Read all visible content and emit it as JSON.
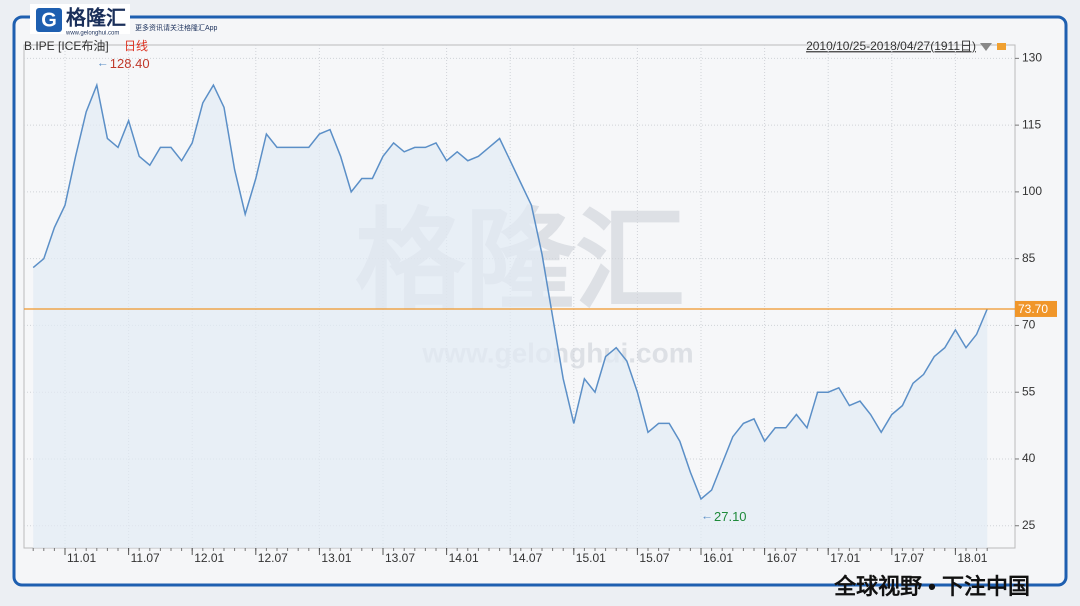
{
  "header": {
    "brand": "格隆汇",
    "brand_url": "www.gelonghui.com",
    "tagline": "更多资讯请关注格隆汇App"
  },
  "footer": "全球视野 • 下注中国",
  "watermark": {
    "name": "格隆汇",
    "url": "www.gelonghui.com"
  },
  "chart_data": {
    "type": "line",
    "title": "B.IPE [ICE布油]",
    "subtitle": "日线",
    "range_label": "2010/10/25-2018/04/27(1911日)",
    "x": [
      "10.10",
      "10.11",
      "10.12",
      "11.01",
      "11.02",
      "11.03",
      "11.04",
      "11.05",
      "11.06",
      "11.07",
      "11.08",
      "11.09",
      "11.10",
      "11.11",
      "11.12",
      "12.01",
      "12.02",
      "12.03",
      "12.04",
      "12.05",
      "12.06",
      "12.07",
      "12.08",
      "12.09",
      "12.10",
      "12.11",
      "12.12",
      "13.01",
      "13.02",
      "13.03",
      "13.04",
      "13.05",
      "13.06",
      "13.07",
      "13.08",
      "13.09",
      "13.10",
      "13.11",
      "13.12",
      "14.01",
      "14.02",
      "14.03",
      "14.04",
      "14.05",
      "14.06",
      "14.07",
      "14.08",
      "14.09",
      "14.10",
      "14.11",
      "14.12",
      "15.01",
      "15.02",
      "15.03",
      "15.04",
      "15.05",
      "15.06",
      "15.07",
      "15.08",
      "15.09",
      "15.10",
      "15.11",
      "15.12",
      "16.01",
      "16.02",
      "16.03",
      "16.04",
      "16.05",
      "16.06",
      "16.07",
      "16.08",
      "16.09",
      "16.10",
      "16.11",
      "16.12",
      "17.01",
      "17.02",
      "17.03",
      "17.04",
      "17.05",
      "17.06",
      "17.07",
      "17.08",
      "17.09",
      "17.10",
      "17.11",
      "17.12",
      "18.01",
      "18.02",
      "18.03",
      "18.04"
    ],
    "series": [
      {
        "name": "B.IPE",
        "color": "#5b8fc7",
        "values": [
          83,
          85,
          92,
          97,
          108,
          118,
          124,
          112,
          110,
          116,
          108,
          106,
          110,
          110,
          107,
          111,
          120,
          124,
          119,
          105,
          95,
          103,
          113,
          110,
          110,
          110,
          110,
          113,
          114,
          108,
          100,
          103,
          103,
          108,
          111,
          109,
          110,
          110,
          111,
          107,
          109,
          107,
          108,
          110,
          112,
          107,
          102,
          97,
          86,
          72,
          58,
          48,
          58,
          55,
          63,
          65,
          62,
          55,
          46,
          48,
          48,
          44,
          37,
          31,
          33,
          39,
          45,
          48,
          49,
          44,
          47,
          47,
          50,
          47,
          55,
          55,
          56,
          52,
          53,
          50,
          46,
          50,
          52,
          57,
          59,
          63,
          65,
          69,
          65,
          68,
          73.7
        ]
      }
    ],
    "xticks": [
      "11.01",
      "11.07",
      "12.01",
      "12.07",
      "13.01",
      "13.07",
      "14.01",
      "14.07",
      "15.01",
      "15.07",
      "16.01",
      "16.07",
      "17.01",
      "17.07",
      "18.01"
    ],
    "ylim": [
      20,
      133
    ],
    "yticks": [
      25,
      40,
      55,
      70,
      85,
      100,
      115,
      130
    ],
    "grid": true,
    "annotations": [
      {
        "kind": "max",
        "value": 128.4,
        "label": "128.40",
        "color": "#c0392b"
      },
      {
        "kind": "min",
        "value": 27.1,
        "label": "27.10",
        "color": "#1e8a3a"
      }
    ],
    "last_price": {
      "value": 73.7,
      "label": "73.70",
      "color": "#f0962a"
    }
  }
}
